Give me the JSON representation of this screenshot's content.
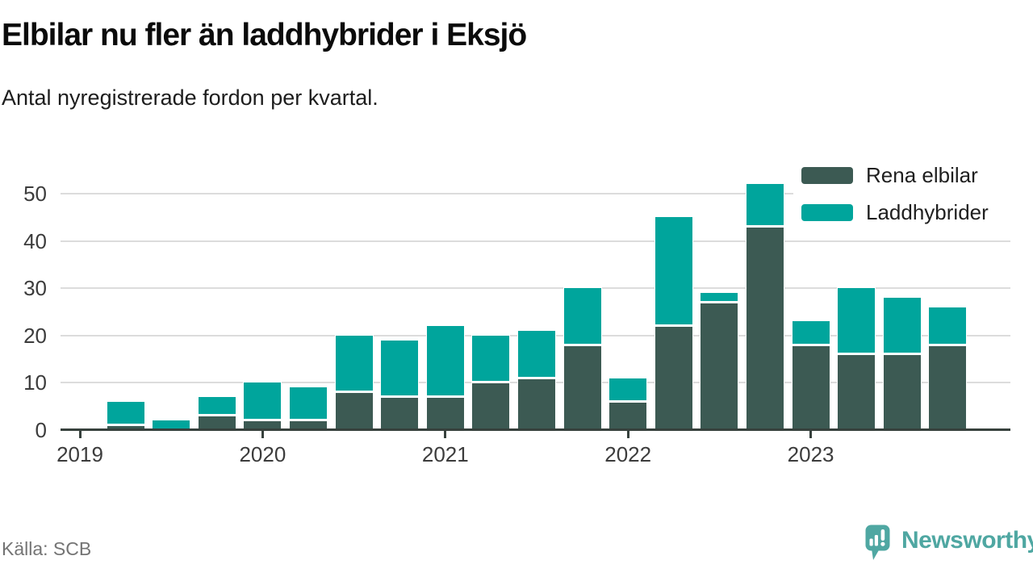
{
  "header": {
    "title": "Elbilar nu fler än laddhybrider i Eksjö",
    "subtitle": "Antal nyregistrerade fordon per kvartal."
  },
  "footer": {
    "source": "Källa: SCB",
    "brand": "Newsworthy"
  },
  "colors": {
    "elbilar": "#3c5a53",
    "laddhybrider": "#00a59c",
    "gridline": "#dcdcdc",
    "axis": "#37413d",
    "axis_text": "#3c3c3c",
    "brand_teal": "#4fa7a2"
  },
  "chart_data": {
    "type": "bar",
    "stacked": true,
    "title": "Elbilar nu fler än laddhybrider i Eksjö",
    "subtitle": "Antal nyregistrerade fordon per kvartal.",
    "categories": [
      "2019 Q1",
      "2019 Q2",
      "2019 Q3",
      "2019 Q4",
      "2020 Q1",
      "2020 Q2",
      "2020 Q3",
      "2020 Q4",
      "2021 Q1",
      "2021 Q2",
      "2021 Q3",
      "2021 Q4",
      "2022 Q1",
      "2022 Q2",
      "2022 Q3",
      "2022 Q4",
      "2023 Q1",
      "2023 Q2",
      "2023 Q3",
      "2023 Q4"
    ],
    "series": [
      {
        "name": "Rena elbilar",
        "color": "#3c5a53",
        "values": [
          0,
          1,
          0,
          3,
          2,
          2,
          8,
          7,
          7,
          10,
          11,
          18,
          6,
          22,
          27,
          43,
          18,
          16,
          16,
          18
        ]
      },
      {
        "name": "Laddhybrider",
        "color": "#00a59c",
        "values": [
          0,
          5,
          2,
          4,
          8,
          7,
          12,
          12,
          15,
          10,
          10,
          12,
          5,
          23,
          2,
          9,
          5,
          14,
          12,
          8
        ]
      }
    ],
    "totals": [
      0,
      6,
      2,
      7,
      10,
      9,
      20,
      19,
      22,
      20,
      21,
      30,
      11,
      45,
      29,
      52,
      23,
      30,
      28,
      26
    ],
    "xticks": [
      "2019",
      "2020",
      "2021",
      "2022",
      "2023"
    ],
    "yticks": [
      0,
      10,
      20,
      30,
      40,
      50
    ],
    "ylim": [
      0,
      55
    ],
    "grid": true,
    "legend_position": "top-right"
  }
}
